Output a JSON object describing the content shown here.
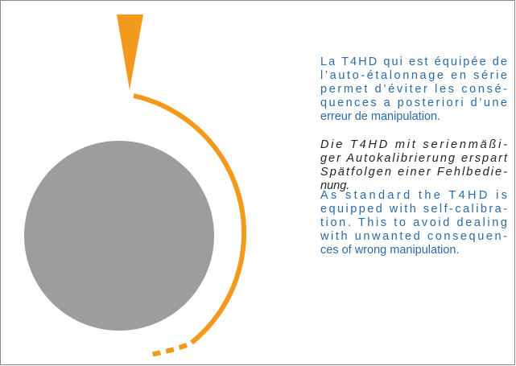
{
  "paragraphs": {
    "french": [
      "La T4HD qui est équipée de",
      "l’auto-étalonnage en série",
      "permet d’éviter les consé-",
      "quences a  posteriori d’une",
      "erreur de manipulation."
    ],
    "german": [
      "Die T4HD mit serienmäßi-",
      "ger Autokalibrierung erspart",
      "Spätfolgen einer Fehlbedie-",
      "nung."
    ],
    "english": [
      "As standard the T4HD is",
      "equipped with self-calibra-",
      "tion. This to avoid dealing",
      "with unwanted consequen-",
      "ces of wrong manipulation."
    ]
  }
}
